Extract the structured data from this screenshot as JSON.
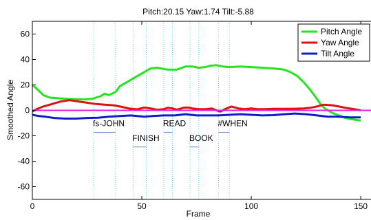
{
  "chart_data": {
    "type": "line",
    "title": "Pitch:20.15 Yaw:1.74 Tilt:-5.88",
    "xlabel": "Frame",
    "ylabel": "Smoothed Angle",
    "xlim": [
      0,
      155
    ],
    "ylim": [
      -70,
      70
    ],
    "xticks": [
      0,
      50,
      100,
      150
    ],
    "yticks": [
      60,
      40,
      20,
      0,
      -20,
      -40,
      -60
    ],
    "grid": false,
    "legend_position": "top-right",
    "series": [
      {
        "name": "Pitch Angle",
        "color": "#22e51b",
        "points": [
          [
            0,
            20
          ],
          [
            2,
            17
          ],
          [
            5,
            12
          ],
          [
            8,
            10
          ],
          [
            12,
            9.5
          ],
          [
            16,
            9
          ],
          [
            20,
            8.7
          ],
          [
            24,
            8.6
          ],
          [
            27,
            9
          ],
          [
            29,
            10
          ],
          [
            31,
            11
          ],
          [
            33,
            13
          ],
          [
            35,
            12
          ],
          [
            38,
            14.5
          ],
          [
            40,
            19
          ],
          [
            43,
            22
          ],
          [
            46,
            25
          ],
          [
            48,
            27
          ],
          [
            50,
            29
          ],
          [
            52,
            31
          ],
          [
            54,
            33
          ],
          [
            57,
            33.5
          ],
          [
            60,
            32.5
          ],
          [
            62,
            32
          ],
          [
            66,
            32
          ],
          [
            70,
            34.5
          ],
          [
            73,
            34.5
          ],
          [
            76,
            33.5
          ],
          [
            79,
            34
          ],
          [
            81,
            35
          ],
          [
            84,
            35.5
          ],
          [
            87,
            34.5
          ],
          [
            90,
            34
          ],
          [
            95,
            34.5
          ],
          [
            100,
            34
          ],
          [
            105,
            33.5
          ],
          [
            110,
            33
          ],
          [
            115,
            32
          ],
          [
            118,
            30
          ],
          [
            121,
            27
          ],
          [
            124,
            22
          ],
          [
            127,
            16
          ],
          [
            130,
            9
          ],
          [
            132,
            4
          ],
          [
            134,
            1
          ],
          [
            137,
            -2
          ],
          [
            140,
            -4
          ],
          [
            143,
            -6
          ],
          [
            146,
            -7
          ],
          [
            150,
            -8
          ]
        ]
      },
      {
        "name": "Yaw Angle",
        "color": "#e30e0e",
        "points": [
          [
            0,
            -1
          ],
          [
            2,
            1
          ],
          [
            5,
            3
          ],
          [
            9,
            5
          ],
          [
            13,
            7
          ],
          [
            17,
            8
          ],
          [
            21,
            7
          ],
          [
            25,
            6
          ],
          [
            29,
            5
          ],
          [
            33,
            4.5
          ],
          [
            37,
            4
          ],
          [
            40,
            3
          ],
          [
            44,
            1.5
          ],
          [
            48,
            0.8
          ],
          [
            51,
            2.2
          ],
          [
            54,
            1.5
          ],
          [
            57,
            0.5
          ],
          [
            60,
            1
          ],
          [
            62,
            2
          ],
          [
            64,
            1.5
          ],
          [
            66,
            0.5
          ],
          [
            69,
            2
          ],
          [
            71,
            2.2
          ],
          [
            73,
            1.5
          ],
          [
            76,
            1
          ],
          [
            79,
            1
          ],
          [
            82,
            1.5
          ],
          [
            84,
            0
          ],
          [
            86,
            -1
          ],
          [
            88,
            1
          ],
          [
            91,
            3
          ],
          [
            94,
            1.5
          ],
          [
            97,
            1
          ],
          [
            100,
            1.5
          ],
          [
            103,
            1
          ],
          [
            106,
            1
          ],
          [
            110,
            1.2
          ],
          [
            115,
            1.2
          ],
          [
            120,
            1.3
          ],
          [
            124,
            1.5
          ],
          [
            127,
            2
          ],
          [
            130,
            3
          ],
          [
            133,
            4.5
          ],
          [
            137,
            4
          ],
          [
            140,
            3
          ],
          [
            143,
            2
          ],
          [
            147,
            1
          ],
          [
            150,
            0
          ]
        ]
      },
      {
        "name": "Tilt Angle",
        "color": "#0c1ec8",
        "points": [
          [
            0,
            -3.5
          ],
          [
            3,
            -4.5
          ],
          [
            6,
            -5
          ],
          [
            10,
            -6
          ],
          [
            15,
            -6.5
          ],
          [
            20,
            -6.5
          ],
          [
            25,
            -6
          ],
          [
            30,
            -5.8
          ],
          [
            35,
            -5
          ],
          [
            40,
            -4.5
          ],
          [
            45,
            -4
          ],
          [
            48,
            -4.5
          ],
          [
            51,
            -5
          ],
          [
            55,
            -4.5
          ],
          [
            60,
            -4
          ],
          [
            65,
            -4
          ],
          [
            70,
            -3
          ],
          [
            75,
            -4
          ],
          [
            80,
            -4
          ],
          [
            85,
            -4
          ],
          [
            90,
            -3.5
          ],
          [
            95,
            -3
          ],
          [
            100,
            -3.5
          ],
          [
            105,
            -4
          ],
          [
            110,
            -3.8
          ],
          [
            115,
            -3
          ],
          [
            120,
            -2.5
          ],
          [
            125,
            -3
          ],
          [
            130,
            -4
          ],
          [
            135,
            -5
          ],
          [
            140,
            -5
          ],
          [
            145,
            -5.5
          ],
          [
            150,
            -5.5
          ]
        ]
      },
      {
        "name": "",
        "color": "#e11ee1",
        "points": [
          [
            0,
            0
          ],
          [
            155,
            0
          ]
        ]
      }
    ],
    "vlines": [
      28,
      38,
      46,
      52,
      60,
      64,
      72,
      76,
      85,
      90
    ],
    "vline_color": "#5fd4e8",
    "annotations": [
      {
        "text": "fs-JOHN",
        "x0": 28,
        "x1": 38,
        "row": "upper"
      },
      {
        "text": "FINISH",
        "x0": 46,
        "x1": 52,
        "row": "lower"
      },
      {
        "text": "READ",
        "x0": 60,
        "x1": 64,
        "row": "upper"
      },
      {
        "text": "BOOK",
        "x0": 72,
        "x1": 76,
        "row": "lower"
      },
      {
        "text": "#WHEN",
        "x0": 85,
        "x1": 90,
        "row": "upper"
      }
    ]
  }
}
